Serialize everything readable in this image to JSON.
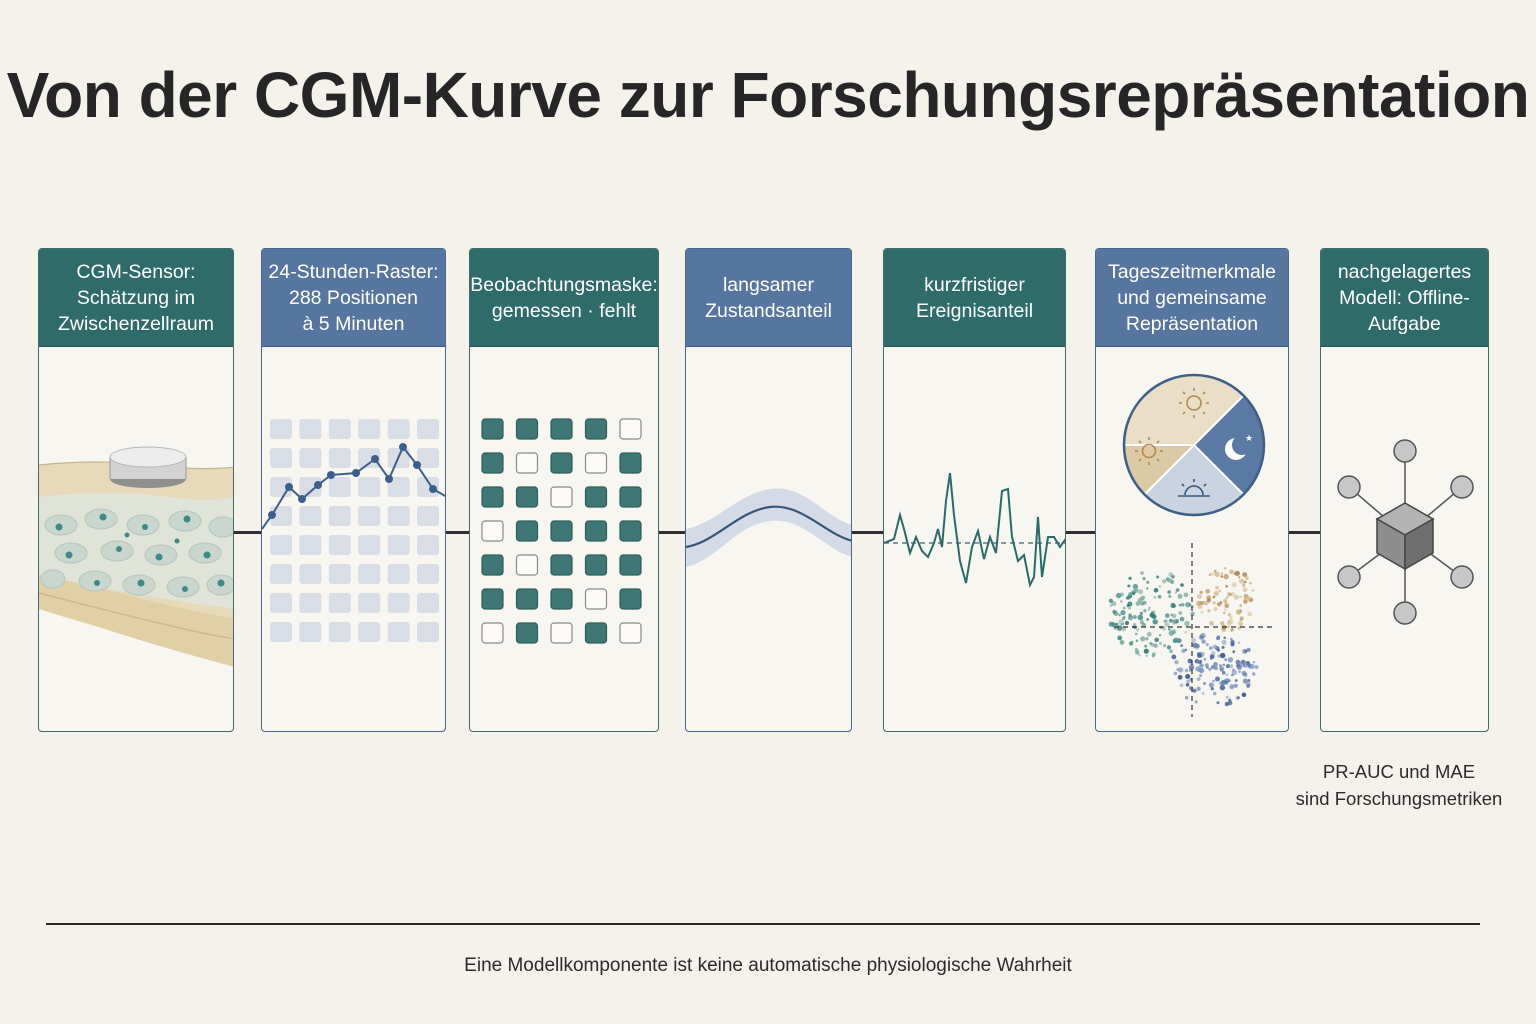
{
  "title": "Von der CGM-Kurve zur Forschungsrepräsentation",
  "panels": [
    {
      "header": "CGM-Sensor:\nSchätzung im\nZwischenzellraum",
      "scheme": "teal"
    },
    {
      "header": "24-Stunden-Raster:\n288 Positionen\nà 5 Minuten",
      "scheme": "blue"
    },
    {
      "header": "Beobachtungsmaske:\ngemessen · fehlt",
      "scheme": "teal"
    },
    {
      "header": "langsamer\nZustandsanteil",
      "scheme": "blue"
    },
    {
      "header": "kurzfristiger\nEreignisanteil",
      "scheme": "teal"
    },
    {
      "header": "Tageszeitmerkmale\nund gemeinsame\nRepräsentation",
      "scheme": "blue"
    },
    {
      "header": "nachgelagertes\nModell: Offline-\nAufgabe",
      "scheme": "teal"
    }
  ],
  "metrics_note": "PR-AUC und MAE\nsind Forschungsmetriken",
  "footer": "Eine Modellkomponente ist keine automatische physiologische Wahrheit",
  "colors": {
    "teal": "#2f6b6b",
    "blue": "#56769f",
    "background": "#f5f2ec",
    "skin": "#e6d7b6"
  },
  "icons": [
    "sensor-icon",
    "sun-icon",
    "moon-icon",
    "sunrise-icon",
    "cube-icon"
  ]
}
